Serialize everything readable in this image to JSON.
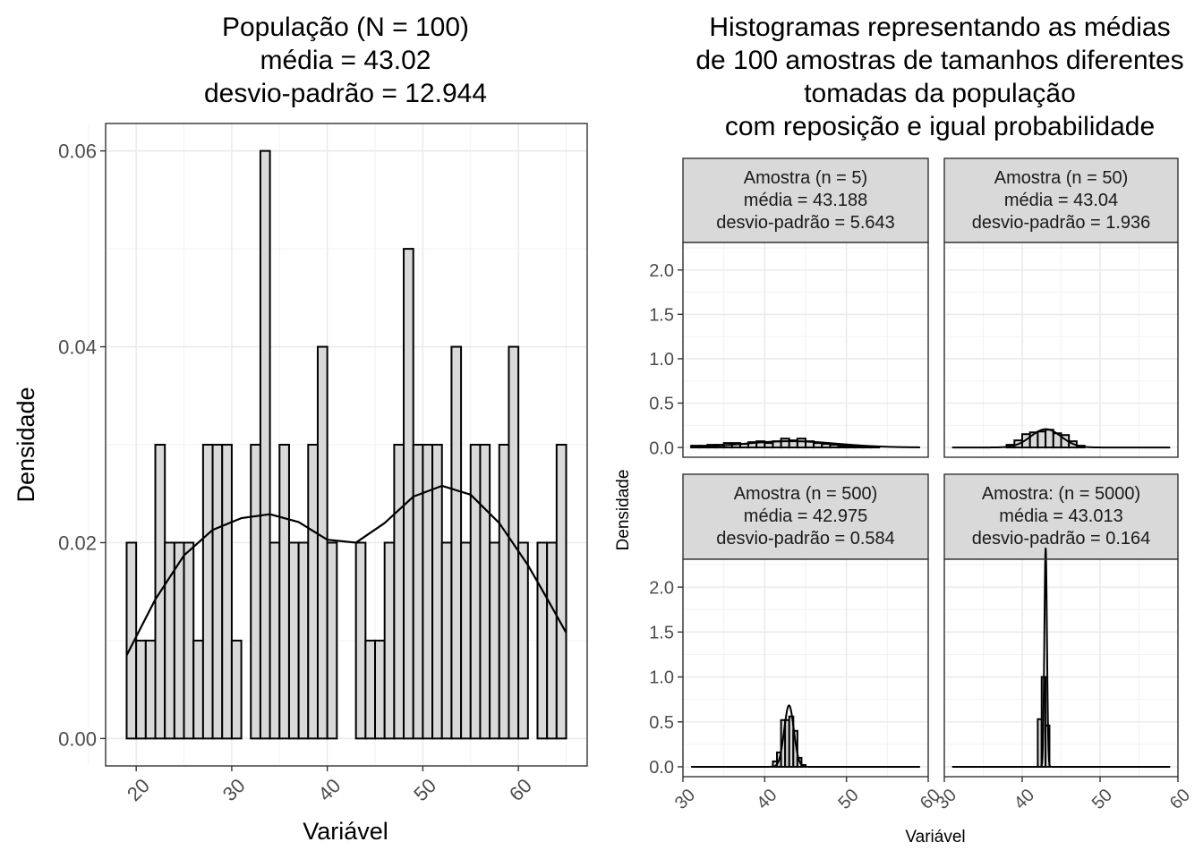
{
  "chart_data": [
    {
      "type": "bar",
      "title_lines": [
        "População (N = 100)",
        "média = 43.02",
        "desvio-padrão = 12.944"
      ],
      "xlabel": "Variável",
      "ylabel": "Densidade",
      "xlim": [
        16.8,
        67.2
      ],
      "ylim": [
        -0.0028,
        0.0628
      ],
      "x_ticks": [
        20,
        30,
        40,
        50,
        60
      ],
      "x_tick_labels": [
        "20",
        "30",
        "40",
        "50",
        "60"
      ],
      "y_ticks": [
        0.0,
        0.02,
        0.04,
        0.06
      ],
      "y_tick_labels": [
        "0.00",
        "0.02",
        "0.04",
        "0.06"
      ],
      "grid": true,
      "bar_color": "#d9d9d9",
      "bin_width": 1,
      "bars": [
        {
          "x": 19.5,
          "y": 0.02
        },
        {
          "x": 20.5,
          "y": 0.01
        },
        {
          "x": 21.5,
          "y": 0.01
        },
        {
          "x": 22.5,
          "y": 0.03
        },
        {
          "x": 23.5,
          "y": 0.02
        },
        {
          "x": 24.5,
          "y": 0.02
        },
        {
          "x": 25.5,
          "y": 0.02
        },
        {
          "x": 26.5,
          "y": 0.01
        },
        {
          "x": 27.5,
          "y": 0.03
        },
        {
          "x": 28.5,
          "y": 0.03
        },
        {
          "x": 29.5,
          "y": 0.03
        },
        {
          "x": 30.5,
          "y": 0.01
        },
        {
          "x": 31.5,
          "y": 0.0
        },
        {
          "x": 32.5,
          "y": 0.03
        },
        {
          "x": 33.5,
          "y": 0.06
        },
        {
          "x": 34.5,
          "y": 0.02
        },
        {
          "x": 35.5,
          "y": 0.03
        },
        {
          "x": 36.5,
          "y": 0.02
        },
        {
          "x": 37.5,
          "y": 0.02
        },
        {
          "x": 38.5,
          "y": 0.03
        },
        {
          "x": 39.5,
          "y": 0.04
        },
        {
          "x": 40.5,
          "y": 0.02
        },
        {
          "x": 41.5,
          "y": 0.0
        },
        {
          "x": 42.5,
          "y": 0.0
        },
        {
          "x": 43.5,
          "y": 0.02
        },
        {
          "x": 44.5,
          "y": 0.01
        },
        {
          "x": 45.5,
          "y": 0.01
        },
        {
          "x": 46.5,
          "y": 0.02
        },
        {
          "x": 47.5,
          "y": 0.03
        },
        {
          "x": 48.5,
          "y": 0.05
        },
        {
          "x": 49.5,
          "y": 0.03
        },
        {
          "x": 50.5,
          "y": 0.03
        },
        {
          "x": 51.5,
          "y": 0.03
        },
        {
          "x": 52.5,
          "y": 0.02
        },
        {
          "x": 53.5,
          "y": 0.04
        },
        {
          "x": 54.5,
          "y": 0.02
        },
        {
          "x": 55.5,
          "y": 0.03
        },
        {
          "x": 56.5,
          "y": 0.03
        },
        {
          "x": 57.5,
          "y": 0.02
        },
        {
          "x": 58.5,
          "y": 0.03
        },
        {
          "x": 59.5,
          "y": 0.04
        },
        {
          "x": 60.5,
          "y": 0.02
        },
        {
          "x": 61.5,
          "y": 0.0
        },
        {
          "x": 62.5,
          "y": 0.02
        },
        {
          "x": 63.5,
          "y": 0.02
        },
        {
          "x": 64.5,
          "y": 0.03
        }
      ],
      "density_curve": {
        "x": [
          19,
          22,
          25,
          28,
          31,
          34,
          37,
          40,
          43,
          46,
          49,
          52,
          55,
          58,
          61,
          63,
          65
        ],
        "y": [
          0.0085,
          0.0142,
          0.0187,
          0.0213,
          0.0225,
          0.0229,
          0.0221,
          0.0203,
          0.02,
          0.022,
          0.0247,
          0.0258,
          0.0249,
          0.022,
          0.0177,
          0.0143,
          0.0108
        ]
      }
    },
    {
      "type": "bar",
      "title_lines": [
        "Histogramas representando as médias",
        "de 100 amostras de tamanhos diferentes",
        "tomadas da população",
        "com reposição e igual probabilidade"
      ],
      "xlabel": "Variável",
      "ylabel": "Densidade",
      "xlim": [
        30,
        60
      ],
      "ylim": [
        -0.11,
        2.31
      ],
      "x_ticks": [
        30,
        40,
        50,
        60
      ],
      "x_tick_labels": [
        "30",
        "40",
        "50",
        "60"
      ],
      "y_ticks": [
        0.0,
        0.5,
        1.0,
        1.5,
        2.0
      ],
      "y_tick_labels": [
        "0.0",
        "0.5",
        "1.0",
        "1.5",
        "2.0"
      ],
      "grid": true,
      "bar_color": "#d9d9d9",
      "panels": [
        {
          "strip_lines": [
            "Amostra (n = 5)",
            "média = 43.188",
            "desvio-padrão = 5.643"
          ],
          "bin_width": 1,
          "bars": [
            {
              "x": 31.5,
              "y": 0.02
            },
            {
              "x": 32.5,
              "y": 0.02
            },
            {
              "x": 33.5,
              "y": 0.03
            },
            {
              "x": 34.5,
              "y": 0.03
            },
            {
              "x": 35.5,
              "y": 0.05
            },
            {
              "x": 36.5,
              "y": 0.05
            },
            {
              "x": 37.5,
              "y": 0.04
            },
            {
              "x": 38.5,
              "y": 0.06
            },
            {
              "x": 39.5,
              "y": 0.07
            },
            {
              "x": 40.5,
              "y": 0.05
            },
            {
              "x": 41.5,
              "y": 0.07
            },
            {
              "x": 42.5,
              "y": 0.1
            },
            {
              "x": 43.5,
              "y": 0.08
            },
            {
              "x": 44.5,
              "y": 0.1
            },
            {
              "x": 45.5,
              "y": 0.07
            },
            {
              "x": 46.5,
              "y": 0.05
            },
            {
              "x": 47.5,
              "y": 0.04
            },
            {
              "x": 48.5,
              "y": 0.03
            },
            {
              "x": 49.5,
              "y": 0.02
            },
            {
              "x": 50.5,
              "y": 0.02
            },
            {
              "x": 51.5,
              "y": 0.01
            },
            {
              "x": 52.5,
              "y": 0.01
            },
            {
              "x": 53.5,
              "y": 0.01
            },
            {
              "x": 54.5,
              "y": 0.0
            },
            {
              "x": 55.5,
              "y": 0.0
            },
            {
              "x": 56.5,
              "y": 0.0
            },
            {
              "x": 57.5,
              "y": 0.0
            },
            {
              "x": 58.5,
              "y": 0.0
            }
          ],
          "density_curve": {
            "mean": 43.188,
            "sd": 5.643,
            "x_range": [
              31,
              59
            ]
          }
        },
        {
          "strip_lines": [
            "Amostra (n = 50)",
            "média = 43.04",
            "desvio-padrão = 1.936"
          ],
          "bin_width": 1,
          "bars": [
            {
              "x": 38.5,
              "y": 0.03
            },
            {
              "x": 39.5,
              "y": 0.08
            },
            {
              "x": 40.5,
              "y": 0.15
            },
            {
              "x": 41.5,
              "y": 0.17
            },
            {
              "x": 42.5,
              "y": 0.18
            },
            {
              "x": 43.5,
              "y": 0.2
            },
            {
              "x": 44.5,
              "y": 0.16
            },
            {
              "x": 45.5,
              "y": 0.14
            },
            {
              "x": 46.5,
              "y": 0.07
            },
            {
              "x": 47.5,
              "y": 0.02
            }
          ],
          "density_curve": {
            "mean": 43.04,
            "sd": 1.936,
            "x_range": [
              31,
              59
            ]
          }
        },
        {
          "strip_lines": [
            "Amostra (n = 500)",
            "média = 42.975",
            "desvio-padrão = 0.584"
          ],
          "bin_width": 0.5,
          "bars": [
            {
              "x": 41.25,
              "y": 0.06
            },
            {
              "x": 41.75,
              "y": 0.16
            },
            {
              "x": 42.25,
              "y": 0.52
            },
            {
              "x": 42.75,
              "y": 0.52
            },
            {
              "x": 43.25,
              "y": 0.56
            },
            {
              "x": 43.75,
              "y": 0.4
            },
            {
              "x": 44.25,
              "y": 0.1
            },
            {
              "x": 44.75,
              "y": 0.02
            }
          ],
          "density_curve": {
            "mean": 42.975,
            "sd": 0.584,
            "x_range": [
              31,
              59
            ]
          }
        },
        {
          "strip_lines": [
            "Amostra: (n = 5000)",
            "média = 43.013",
            "desvio-padrão = 0.164"
          ],
          "bin_width": 0.5,
          "bars": [
            {
              "x": 42.25,
              "y": 0.53
            },
            {
              "x": 42.75,
              "y": 1.0
            },
            {
              "x": 43.25,
              "y": 0.46
            }
          ],
          "density_curve": {
            "mean": 43.013,
            "sd": 0.164,
            "x_range": [
              31,
              59
            ]
          }
        }
      ]
    }
  ]
}
